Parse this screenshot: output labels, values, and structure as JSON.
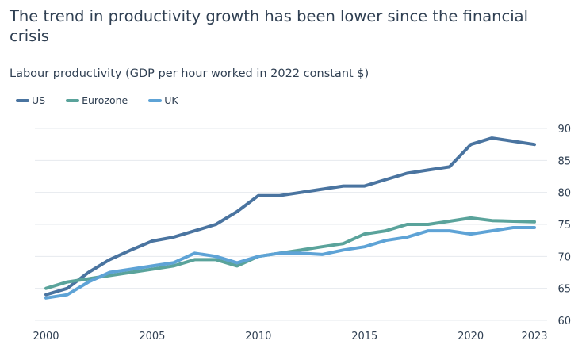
{
  "chart_data": {
    "type": "line",
    "title": "The trend in productivity growth has been lower since the financial crisis",
    "subtitle": "Labour productivity (GDP per hour worked in 2022 constant $)",
    "xlabel": "",
    "ylabel": "",
    "x": [
      2000,
      2001,
      2002,
      2003,
      2004,
      2005,
      2006,
      2007,
      2008,
      2009,
      2010,
      2011,
      2012,
      2013,
      2014,
      2015,
      2016,
      2017,
      2018,
      2019,
      2020,
      2021,
      2022,
      2023
    ],
    "x_ticks": [
      "2000",
      "2005",
      "2010",
      "2015",
      "2020",
      "2023"
    ],
    "x_tick_values": [
      2000,
      2005,
      2010,
      2015,
      2020,
      2023
    ],
    "xlim": [
      2000,
      2023
    ],
    "ylim": [
      60,
      90
    ],
    "y_ticks": [
      "60",
      "65",
      "70",
      "75",
      "80",
      "85",
      "90"
    ],
    "y_tick_values": [
      60,
      65,
      70,
      75,
      80,
      85,
      90
    ],
    "y_axis_side": "right",
    "grid": true,
    "legend_position": "top-left",
    "series": [
      {
        "name": "US",
        "color": "#4a74a0",
        "values": [
          64.0,
          65.0,
          67.5,
          69.5,
          71.0,
          72.4,
          73.0,
          74.0,
          75.0,
          77.0,
          79.5,
          79.5,
          80.0,
          80.5,
          81.0,
          81.0,
          82.0,
          83.0,
          83.5,
          84.0,
          87.5,
          88.5,
          88.0,
          87.5
        ]
      },
      {
        "name": "Eurozone",
        "color": "#5aa39b",
        "values": [
          65.0,
          66.0,
          66.5,
          67.0,
          67.5,
          68.0,
          68.5,
          69.5,
          69.5,
          68.5,
          70.0,
          70.5,
          71.0,
          71.5,
          72.0,
          73.5,
          74.0,
          75.0,
          75.0,
          75.5,
          76.0,
          75.6,
          75.5,
          75.4
        ]
      },
      {
        "name": "UK",
        "color": "#5ea3d6",
        "values": [
          63.5,
          64.0,
          66.0,
          67.5,
          68.0,
          68.5,
          69.0,
          70.5,
          70.0,
          69.0,
          70.0,
          70.5,
          70.5,
          70.3,
          71.0,
          71.5,
          72.5,
          73.0,
          74.0,
          74.0,
          73.5,
          74.0,
          74.5,
          74.5
        ]
      }
    ]
  }
}
